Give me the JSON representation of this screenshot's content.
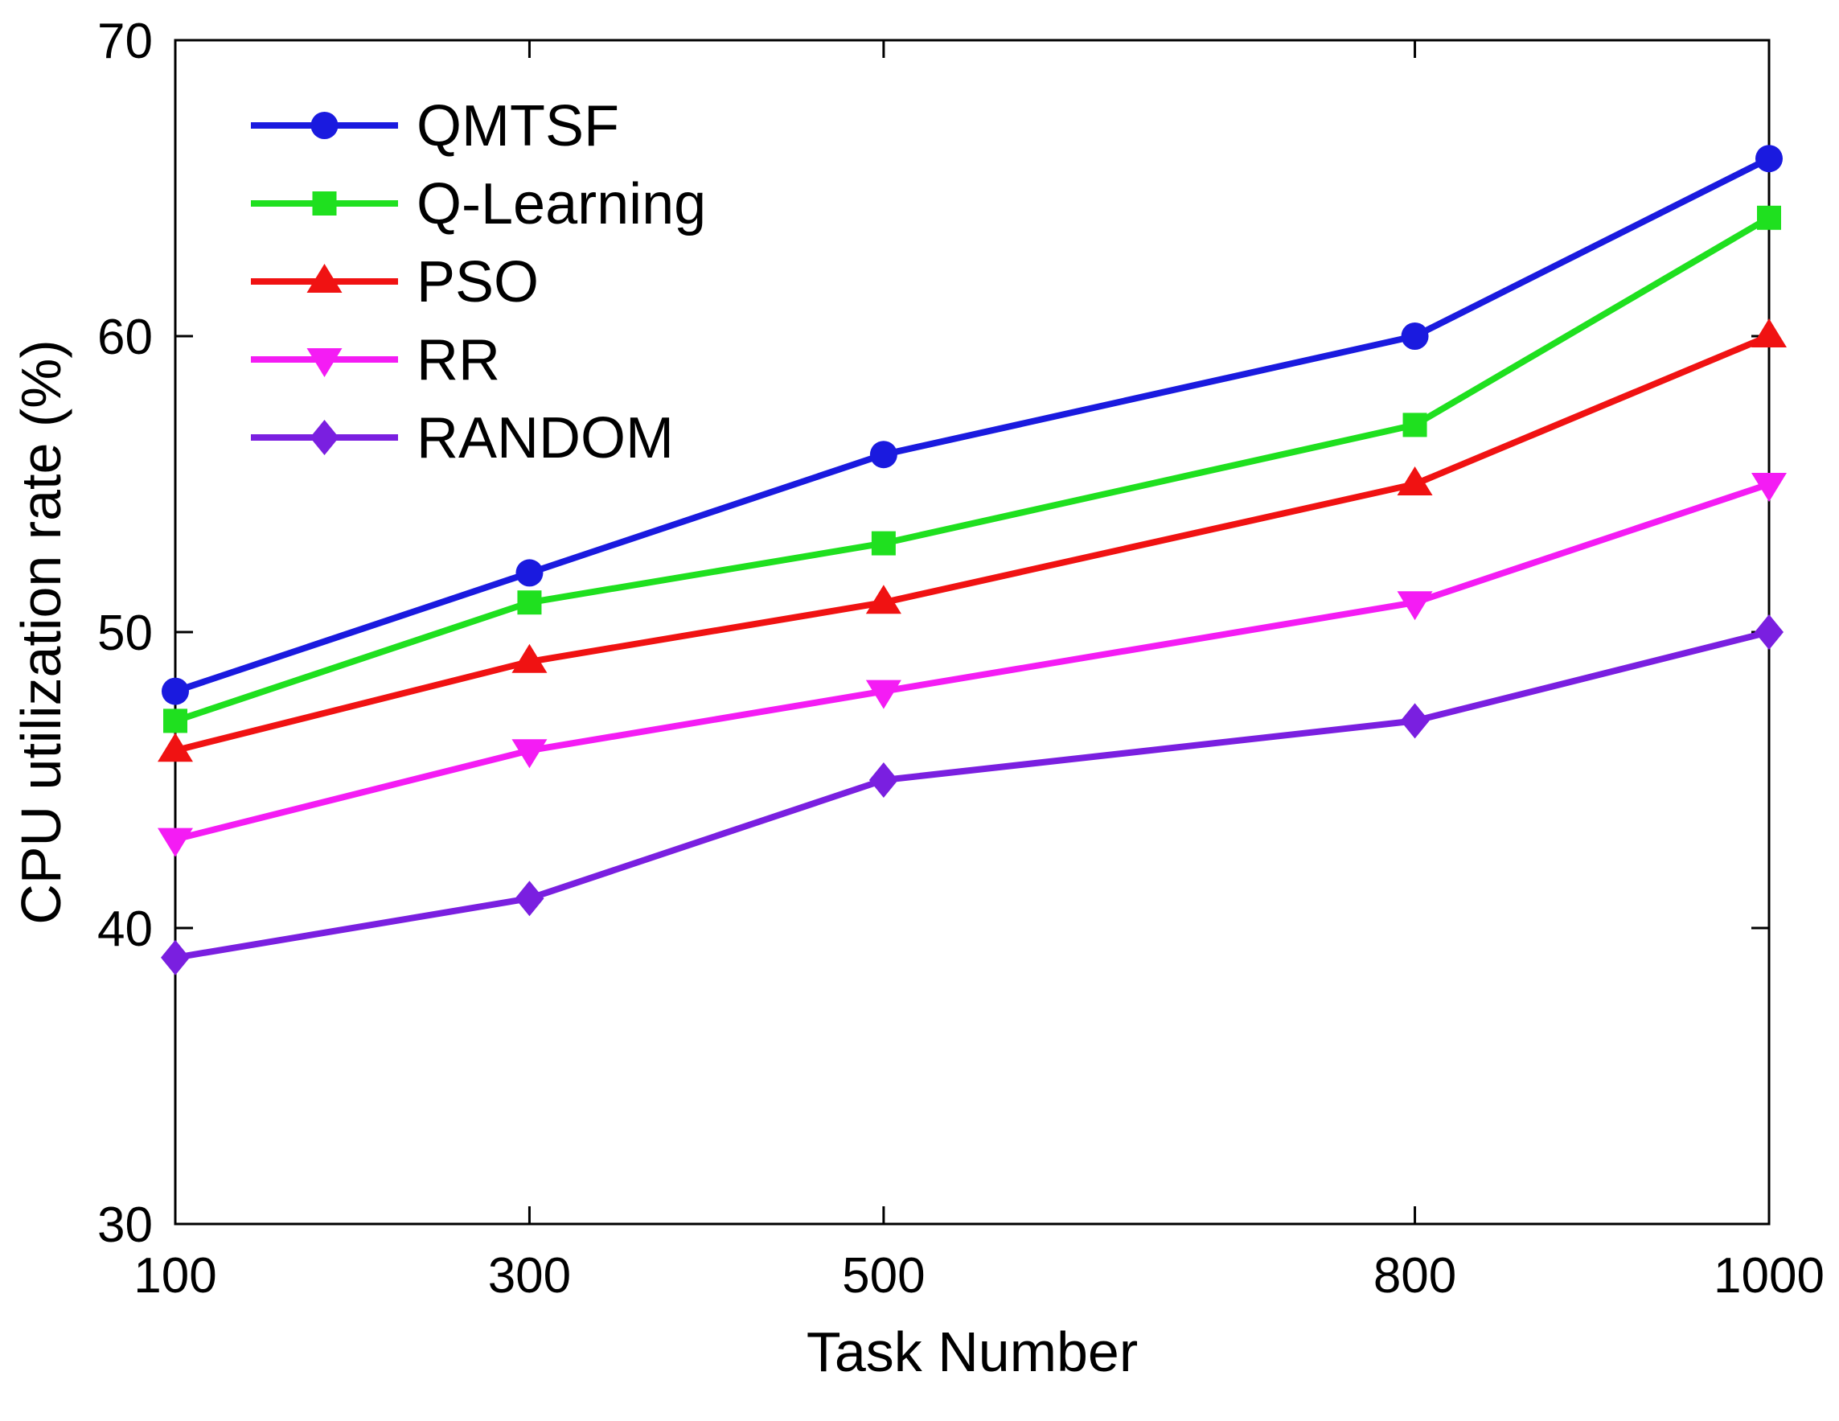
{
  "chart_data": {
    "type": "line",
    "title": "",
    "xlabel": "Task Number",
    "ylabel": "CPU utilization rate (%)",
    "x": [
      100,
      300,
      500,
      800,
      1000
    ],
    "xlim": [
      100,
      1000
    ],
    "ylim": [
      30,
      70
    ],
    "xticks": [
      100,
      300,
      500,
      800,
      1000
    ],
    "yticks": [
      30,
      40,
      50,
      60,
      70
    ],
    "xtick_labels": [
      "100",
      "300",
      "500",
      "800",
      "1000"
    ],
    "ytick_labels": [
      "30",
      "40",
      "50",
      "60",
      "70"
    ],
    "grid": false,
    "legend_position": "top-left",
    "series": [
      {
        "name": "QMTSF",
        "color": "#1a1adf",
        "marker": "circle",
        "values": [
          48,
          52,
          56,
          60,
          66
        ]
      },
      {
        "name": "Q-Learning",
        "color": "#1fe01f",
        "marker": "square",
        "values": [
          47,
          51,
          53,
          57,
          64
        ]
      },
      {
        "name": "PSO",
        "color": "#f01212",
        "marker": "triangle-up",
        "values": [
          46,
          49,
          51,
          55,
          60
        ]
      },
      {
        "name": "RR",
        "color": "#f41cf4",
        "marker": "triangle-down",
        "values": [
          43,
          46,
          48,
          51,
          55
        ]
      },
      {
        "name": "RANDOM",
        "color": "#7a1fe0",
        "marker": "diamond",
        "values": [
          39,
          41,
          45,
          47,
          50
        ]
      }
    ]
  }
}
